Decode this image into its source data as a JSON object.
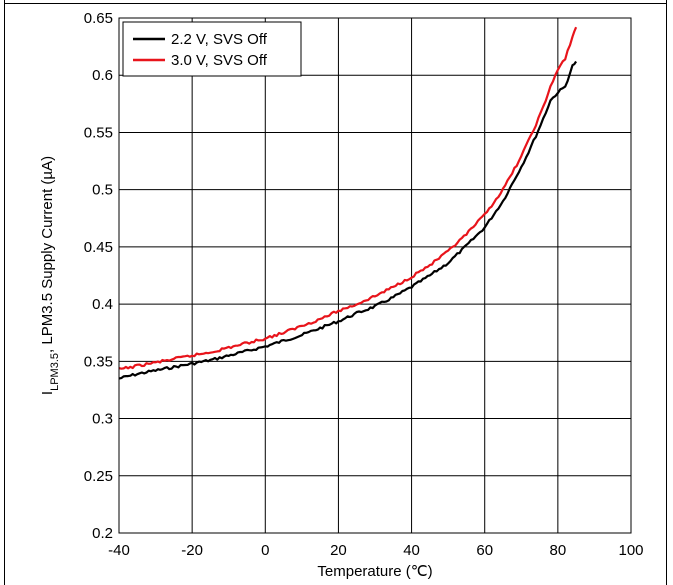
{
  "chart_data": {
    "type": "line",
    "title": "",
    "xlabel": "Temperature (℃)",
    "ylabel": {
      "main": "I",
      "sub": "LPM3.5",
      "rest": ", LPM3.5 Supply Current (µA)"
    },
    "xlim": [
      -40,
      100
    ],
    "ylim": [
      0.2,
      0.65
    ],
    "xticks": [
      -40,
      -20,
      0,
      20,
      40,
      60,
      80,
      100
    ],
    "xtick_labels": [
      "-40",
      "-20",
      "0",
      "20",
      "40",
      "60",
      "80",
      "100"
    ],
    "yticks": [
      0.2,
      0.25,
      0.3,
      0.35,
      0.4,
      0.45,
      0.5,
      0.55,
      0.6,
      0.65
    ],
    "ytick_labels": [
      "0.2",
      "0.25",
      "0.3",
      "0.35",
      "0.4",
      "0.45",
      "0.5",
      "0.55",
      "0.6",
      "0.65"
    ],
    "grid": true,
    "legend_position": "top-left",
    "series": [
      {
        "name": "2.2 V, SVS Off",
        "color": "#000000",
        "x": [
          -40,
          -35,
          -30,
          -25,
          -20,
          -15,
          -10,
          -5,
          0,
          5,
          10,
          15,
          20,
          25,
          30,
          35,
          40,
          45,
          50,
          55,
          60,
          65,
          70,
          72,
          74,
          76,
          78,
          80,
          82,
          84,
          85
        ],
        "y": [
          0.335,
          0.339,
          0.342,
          0.345,
          0.348,
          0.351,
          0.355,
          0.359,
          0.363,
          0.368,
          0.373,
          0.379,
          0.385,
          0.392,
          0.398,
          0.406,
          0.415,
          0.425,
          0.436,
          0.451,
          0.467,
          0.49,
          0.52,
          0.533,
          0.547,
          0.562,
          0.578,
          0.585,
          0.59,
          0.608,
          0.612
        ]
      },
      {
        "name": "3.0 V, SVS Off",
        "color": "#e8141b",
        "x": [
          -40,
          -35,
          -30,
          -25,
          -20,
          -15,
          -10,
          -5,
          0,
          5,
          10,
          15,
          20,
          25,
          30,
          35,
          40,
          45,
          50,
          55,
          60,
          65,
          70,
          72,
          74,
          76,
          78,
          80,
          82,
          84,
          85
        ],
        "y": [
          0.343,
          0.346,
          0.349,
          0.352,
          0.355,
          0.358,
          0.362,
          0.366,
          0.37,
          0.375,
          0.381,
          0.387,
          0.394,
          0.4,
          0.407,
          0.415,
          0.424,
          0.434,
          0.446,
          0.461,
          0.478,
          0.5,
          0.529,
          0.543,
          0.557,
          0.572,
          0.59,
          0.605,
          0.614,
          0.634,
          0.642
        ]
      }
    ]
  }
}
